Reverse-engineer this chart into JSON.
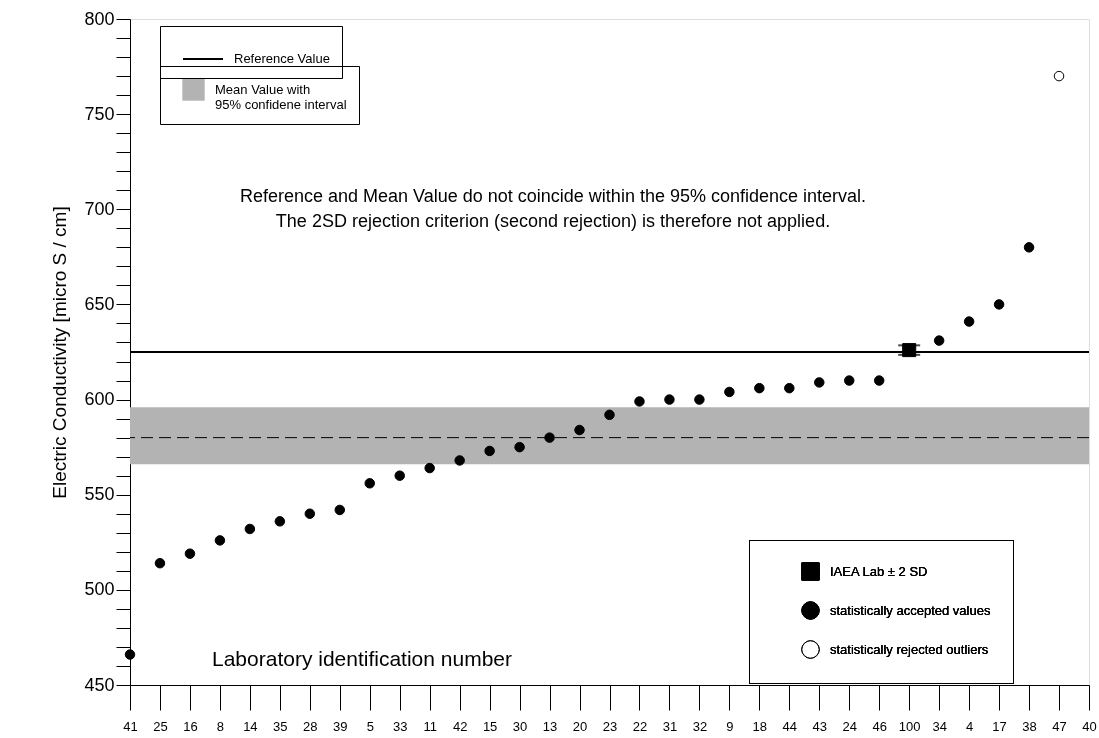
{
  "chart_data": {
    "type": "scatter",
    "xlabel": "Laboratory identification number",
    "ylabel": "Electric Conductivity [micro S / cm]",
    "categories": [
      "41",
      "25",
      "16",
      "8",
      "14",
      "35",
      "28",
      "39",
      "5",
      "33",
      "11",
      "42",
      "15",
      "30",
      "13",
      "20",
      "23",
      "22",
      "31",
      "32",
      "9",
      "18",
      "44",
      "43",
      "24",
      "46",
      "100",
      "34",
      "4",
      "17",
      "38",
      "47",
      "40"
    ],
    "series": [
      {
        "name": "IAEA Lab ± 2 SD",
        "color": "#000000",
        "marker": "square",
        "values": [
          null,
          null,
          null,
          null,
          null,
          null,
          null,
          null,
          null,
          null,
          null,
          null,
          null,
          null,
          null,
          null,
          null,
          null,
          null,
          null,
          null,
          null,
          null,
          null,
          null,
          null,
          626,
          null,
          null,
          null,
          null,
          null,
          null
        ],
        "errors": [
          null,
          null,
          null,
          null,
          null,
          null,
          null,
          null,
          null,
          null,
          null,
          null,
          null,
          null,
          null,
          null,
          null,
          null,
          null,
          null,
          null,
          null,
          null,
          null,
          null,
          null,
          2.5,
          null,
          null,
          null,
          null,
          null,
          null
        ]
      },
      {
        "name": "statistically accepted values",
        "color": "#000000",
        "marker": "circle",
        "values": [
          466,
          514,
          519,
          526,
          532,
          536,
          540,
          542,
          556,
          560,
          564,
          568,
          573,
          575,
          580,
          584,
          592,
          599,
          600,
          600,
          604,
          606,
          606,
          609,
          610,
          610,
          null,
          631,
          641,
          650,
          680,
          null,
          null
        ]
      },
      {
        "name": "statistically rejected outliers",
        "color": "#ffffff",
        "marker": "circle",
        "values": [
          null,
          null,
          null,
          null,
          null,
          null,
          null,
          null,
          null,
          null,
          null,
          null,
          null,
          null,
          null,
          null,
          null,
          null,
          null,
          null,
          null,
          null,
          null,
          null,
          null,
          null,
          null,
          null,
          null,
          null,
          null,
          770,
          null
        ]
      }
    ],
    "ylim": [
      450,
      800
    ],
    "yticks": [
      450,
      {
        "value": 460,
        "label": null
      },
      {
        "value": 470,
        "label": null
      },
      {
        "value": 480,
        "label": null
      },
      {
        "value": 490,
        "label": null
      },
      500,
      {
        "value": 510,
        "label": null
      },
      {
        "value": 520,
        "label": null
      },
      {
        "value": 530,
        "label": null
      },
      {
        "value": 540,
        "label": null
      },
      550,
      {
        "value": 560,
        "label": null
      },
      {
        "value": 570,
        "label": null
      },
      {
        "value": 580,
        "label": null
      },
      {
        "value": 590,
        "label": null
      },
      600,
      {
        "value": 610,
        "label": null
      },
      {
        "value": 620,
        "label": null
      },
      {
        "value": 630,
        "label": null
      },
      {
        "value": 640,
        "label": null
      },
      650,
      {
        "value": 660,
        "label": null
      },
      {
        "value": 670,
        "label": null
      },
      {
        "value": 680,
        "label": null
      },
      {
        "value": 690,
        "label": null
      },
      700,
      {
        "value": 710,
        "label": null
      },
      {
        "value": 720,
        "label": null
      },
      {
        "value": 730,
        "label": null
      },
      {
        "value": 740,
        "label": null
      },
      750,
      {
        "value": 760,
        "label": null
      },
      {
        "value": 770,
        "label": null
      },
      {
        "value": 780,
        "label": null
      },
      {
        "value": 790,
        "label": null
      },
      800
    ],
    "ref_lines": [
      {
        "axis": "y",
        "value": 625,
        "label": "Reference Value",
        "line_style": "solid",
        "color": "#000000"
      },
      {
        "axis": "y",
        "value": 580,
        "line_style": "dashed",
        "color": "#000000"
      }
    ],
    "bands": [
      {
        "axis": "y",
        "from": 566,
        "to": 596,
        "label": "Mean Value with\n95% confidene interval",
        "color": "#b3b3b3"
      }
    ],
    "annotations": [
      "Reference and Mean Value do not coincide within the 95% confidence interval.",
      "The 2SD rejection criterion (second rejection) is therefore not applied."
    ],
    "legend": "bottom right",
    "grid": false
  }
}
